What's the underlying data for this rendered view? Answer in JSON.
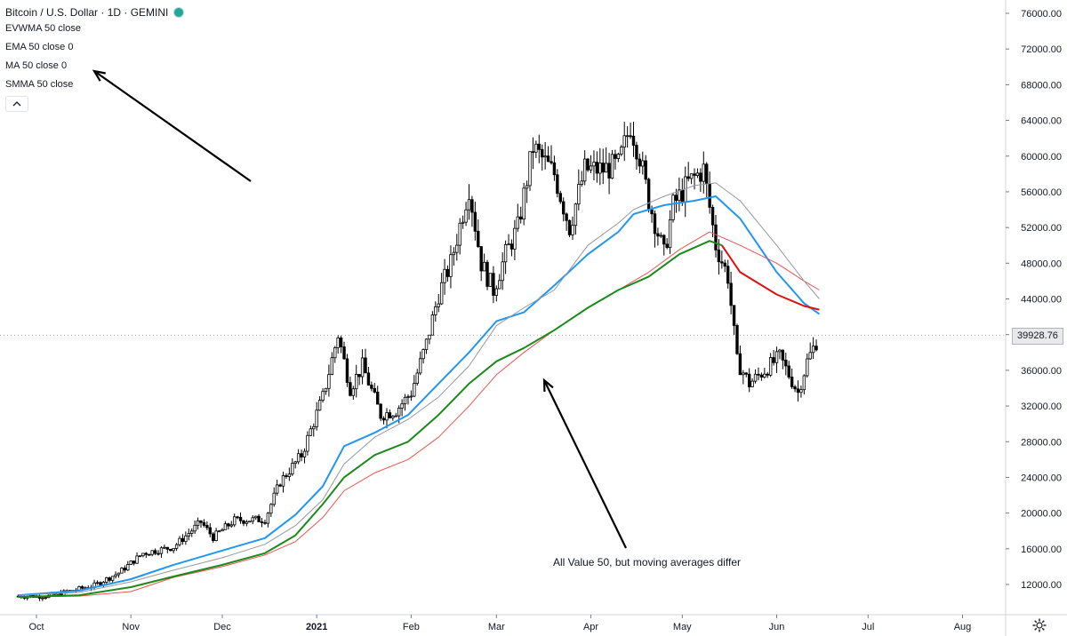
{
  "header": {
    "title": "Bitcoin / U.S. Dollar · 1D · GEMINI",
    "indicators": [
      "EVWMA 50 close",
      "EMA 50 close 0",
      "MA 50 close 0",
      "SMMA 50 close"
    ],
    "status_color": "#26a69a"
  },
  "current_price": "39928.76",
  "annotation": "All Value 50, but moving averages differ",
  "settings_icon": "gear-icon",
  "collapse_icon": "chevron-up-icon",
  "chart_data": {
    "type": "candlestick",
    "title": "Bitcoin / U.S. Dollar · 1D · GEMINI",
    "xlabel": "",
    "ylabel": "",
    "ylim": [
      9500,
      77500
    ],
    "x_tick_labels": [
      "Oct",
      "Nov",
      "Dec",
      "2021",
      "Feb",
      "Mar",
      "Apr",
      "May",
      "Jun",
      "Jul",
      "Aug"
    ],
    "y_tick_labels": [
      "12000.00",
      "16000.00",
      "20000.00",
      "24000.00",
      "28000.00",
      "32000.00",
      "36000.00",
      "40000.00",
      "44000.00",
      "48000.00",
      "52000.00",
      "56000.00",
      "60000.00",
      "64000.00",
      "68000.00",
      "72000.00",
      "76000.00"
    ],
    "y_ticks": [
      12000,
      16000,
      20000,
      24000,
      28000,
      32000,
      36000,
      40000,
      44000,
      48000,
      52000,
      56000,
      60000,
      64000,
      68000,
      72000,
      76000
    ],
    "last_price": 39928.76,
    "price_path": [
      [
        "2020-09-25",
        10700
      ],
      [
        "2020-10-05",
        10700
      ],
      [
        "2020-10-20",
        11900
      ],
      [
        "2020-10-28",
        13300
      ],
      [
        "2020-11-05",
        15500
      ],
      [
        "2020-11-15",
        16200
      ],
      [
        "2020-11-24",
        19000
      ],
      [
        "2020-11-28",
        17300
      ],
      [
        "2020-12-05",
        19200
      ],
      [
        "2020-12-15",
        19300
      ],
      [
        "2020-12-20",
        23500
      ],
      [
        "2020-12-27",
        26500
      ],
      [
        "2021-01-03",
        33000
      ],
      [
        "2021-01-08",
        40000
      ],
      [
        "2021-01-12",
        34000
      ],
      [
        "2021-01-16",
        36500
      ],
      [
        "2021-01-22",
        31000
      ],
      [
        "2021-01-27",
        31500
      ],
      [
        "2021-02-01",
        33500
      ],
      [
        "2021-02-06",
        39000
      ],
      [
        "2021-02-10",
        44500
      ],
      [
        "2021-02-14",
        48000
      ],
      [
        "2021-02-20",
        56500
      ],
      [
        "2021-02-24",
        48000
      ],
      [
        "2021-02-28",
        45000
      ],
      [
        "2021-03-04",
        49000
      ],
      [
        "2021-03-08",
        52000
      ],
      [
        "2021-03-13",
        61000
      ],
      [
        "2021-03-20",
        58000
      ],
      [
        "2021-03-25",
        52000
      ],
      [
        "2021-03-30",
        58500
      ],
      [
        "2021-04-05",
        58500
      ],
      [
        "2021-04-10",
        59000
      ],
      [
        "2021-04-14",
        63500
      ],
      [
        "2021-04-17",
        60000
      ],
      [
        "2021-04-20",
        55000
      ],
      [
        "2021-04-25",
        49000
      ],
      [
        "2021-04-28",
        54500
      ],
      [
        "2021-05-03",
        57000
      ],
      [
        "2021-05-08",
        58500
      ],
      [
        "2021-05-12",
        50000
      ],
      [
        "2021-05-16",
        46500
      ],
      [
        "2021-05-19",
        37000
      ],
      [
        "2021-05-23",
        34500
      ],
      [
        "2021-05-28",
        36000
      ],
      [
        "2021-06-02",
        37500
      ],
      [
        "2021-06-08",
        33500
      ],
      [
        "2021-06-11",
        37000
      ],
      [
        "2021-06-15",
        39928.76
      ]
    ],
    "series": [
      {
        "name": "EVWMA 50 close",
        "color": "#2196f3",
        "values": [
          [
            "2020-09-25",
            10800
          ],
          [
            "2020-10-15",
            11300
          ],
          [
            "2020-11-01",
            12600
          ],
          [
            "2020-11-15",
            14200
          ],
          [
            "2020-12-01",
            15800
          ],
          [
            "2020-12-15",
            17200
          ],
          [
            "2020-12-25",
            19800
          ],
          [
            "2021-01-03",
            23000
          ],
          [
            "2021-01-10",
            27500
          ],
          [
            "2021-01-20",
            29000
          ],
          [
            "2021-01-31",
            31000
          ],
          [
            "2021-02-10",
            34500
          ],
          [
            "2021-02-20",
            38000
          ],
          [
            "2021-03-01",
            41500
          ],
          [
            "2021-03-10",
            42500
          ],
          [
            "2021-03-20",
            45500
          ],
          [
            "2021-03-31",
            49000
          ],
          [
            "2021-04-10",
            51500
          ],
          [
            "2021-04-15",
            53500
          ],
          [
            "2021-04-25",
            54500
          ],
          [
            "2021-05-05",
            55000
          ],
          [
            "2021-05-12",
            55500
          ],
          [
            "2021-05-20",
            53000
          ],
          [
            "2021-06-01",
            47000
          ],
          [
            "2021-06-10",
            43500
          ],
          [
            "2021-06-15",
            42300
          ]
        ]
      },
      {
        "name": "EMA 50 close 0",
        "color": "#ef5350",
        "values": [
          [
            "2020-09-25",
            10600
          ],
          [
            "2020-10-15",
            10700
          ],
          [
            "2020-11-01",
            11200
          ],
          [
            "2020-11-15",
            12800
          ],
          [
            "2020-12-01",
            14000
          ],
          [
            "2020-12-15",
            15300
          ],
          [
            "2020-12-25",
            16800
          ],
          [
            "2021-01-03",
            19500
          ],
          [
            "2021-01-10",
            22500
          ],
          [
            "2021-01-20",
            24500
          ],
          [
            "2021-01-31",
            26000
          ],
          [
            "2021-02-10",
            28500
          ],
          [
            "2021-02-20",
            32000
          ],
          [
            "2021-03-01",
            35500
          ],
          [
            "2021-03-10",
            38000
          ],
          [
            "2021-03-20",
            40500
          ],
          [
            "2021-03-31",
            43000
          ],
          [
            "2021-04-10",
            45000
          ],
          [
            "2021-04-20",
            47000
          ],
          [
            "2021-04-30",
            49500
          ],
          [
            "2021-05-10",
            51500
          ],
          [
            "2021-05-20",
            50000
          ],
          [
            "2021-06-01",
            48000
          ],
          [
            "2021-06-10",
            46000
          ],
          [
            "2021-06-15",
            45000
          ]
        ]
      },
      {
        "name": "MA 50 close 0",
        "color": "#9598a1",
        "values": [
          [
            "2020-09-25",
            10800
          ],
          [
            "2020-10-15",
            11100
          ],
          [
            "2020-11-01",
            12300
          ],
          [
            "2020-11-15",
            13600
          ],
          [
            "2020-12-01",
            15000
          ],
          [
            "2020-12-15",
            16500
          ],
          [
            "2020-12-25",
            18600
          ],
          [
            "2021-01-03",
            21500
          ],
          [
            "2021-01-10",
            25500
          ],
          [
            "2021-01-20",
            28500
          ],
          [
            "2021-01-31",
            30500
          ],
          [
            "2021-02-10",
            33000
          ],
          [
            "2021-02-20",
            36500
          ],
          [
            "2021-03-01",
            41000
          ],
          [
            "2021-03-10",
            43000
          ],
          [
            "2021-03-20",
            45000
          ],
          [
            "2021-03-31",
            50000
          ],
          [
            "2021-04-10",
            52500
          ],
          [
            "2021-04-15",
            54000
          ],
          [
            "2021-04-25",
            55500
          ],
          [
            "2021-05-05",
            56700
          ],
          [
            "2021-05-12",
            57000
          ],
          [
            "2021-05-20",
            55000
          ],
          [
            "2021-06-01",
            50000
          ],
          [
            "2021-06-10",
            46000
          ],
          [
            "2021-06-15",
            44000
          ]
        ]
      },
      {
        "name": "SMMA 50 close",
        "color": "#1b8a1b",
        "values": [
          [
            "2020-09-25",
            10600
          ],
          [
            "2020-10-15",
            10800
          ],
          [
            "2020-11-01",
            11700
          ],
          [
            "2020-11-15",
            12900
          ],
          [
            "2020-12-01",
            14200
          ],
          [
            "2020-12-15",
            15500
          ],
          [
            "2020-12-25",
            17500
          ],
          [
            "2021-01-03",
            21000
          ],
          [
            "2021-01-10",
            24000
          ],
          [
            "2021-01-20",
            26500
          ],
          [
            "2021-01-31",
            28000
          ],
          [
            "2021-02-10",
            31000
          ],
          [
            "2021-02-20",
            34500
          ],
          [
            "2021-03-01",
            37000
          ],
          [
            "2021-03-10",
            38500
          ],
          [
            "2021-03-20",
            40500
          ],
          [
            "2021-03-31",
            43000
          ],
          [
            "2021-04-10",
            45000
          ],
          [
            "2021-04-20",
            46500
          ],
          [
            "2021-04-30",
            49000
          ],
          [
            "2021-05-10",
            50500
          ],
          [
            "2021-05-14",
            50000
          ]
        ]
      }
    ],
    "sma_red_tail": {
      "name": "SMMA 50 close",
      "color": "#e01010",
      "values": [
        [
          "2021-05-14",
          50000
        ],
        [
          "2021-05-20",
          47000
        ],
        [
          "2021-06-01",
          44500
        ],
        [
          "2021-06-10",
          43200
        ],
        [
          "2021-06-15",
          42800
        ]
      ]
    },
    "legend_position": "top-left",
    "grid": false
  }
}
